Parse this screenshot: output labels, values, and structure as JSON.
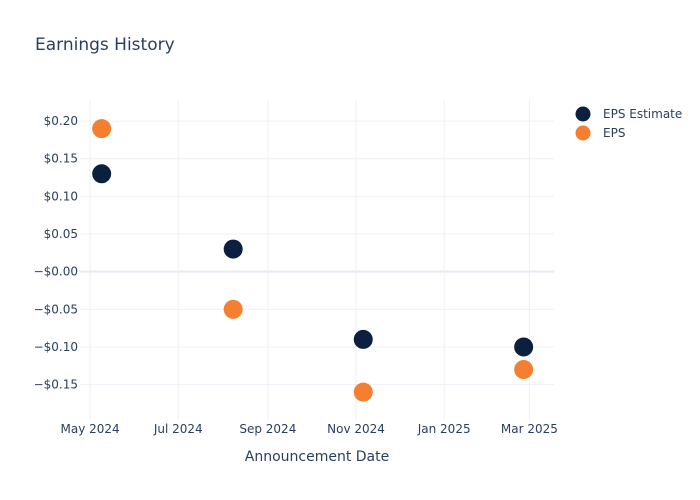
{
  "chart_data": {
    "type": "scatter",
    "title": "Earnings History",
    "xlabel": "Announcement Date",
    "ylabel": "",
    "x_ticks": [
      {
        "date": "2024-05-01",
        "label": "May 2024"
      },
      {
        "date": "2024-07-01",
        "label": "Jul 2024"
      },
      {
        "date": "2024-09-01",
        "label": "Sep 2024"
      },
      {
        "date": "2024-11-01",
        "label": "Nov 2024"
      },
      {
        "date": "2025-01-01",
        "label": "Jan 2025"
      },
      {
        "date": "2025-03-01",
        "label": "Mar 2025"
      }
    ],
    "y_ticks": [
      {
        "value": 0.2,
        "label": "$0.20"
      },
      {
        "value": 0.15,
        "label": "$0.15"
      },
      {
        "value": 0.1,
        "label": "$0.10"
      },
      {
        "value": 0.05,
        "label": "$0.05"
      },
      {
        "value": 0.0,
        "label": "−$0.00"
      },
      {
        "value": -0.05,
        "label": "−$0.05"
      },
      {
        "value": -0.1,
        "label": "−$0.10"
      },
      {
        "value": -0.15,
        "label": "−$0.15"
      }
    ],
    "xlim": [
      "2024-04-24",
      "2025-03-18"
    ],
    "ylim": [
      -0.197,
      0.228
    ],
    "grid": true,
    "legend_position": "top-right",
    "series": [
      {
        "name": "EPS Estimate",
        "color": "#0b1f3f",
        "points": [
          {
            "x": "2024-05-09",
            "y": 0.13
          },
          {
            "x": "2024-08-08",
            "y": 0.03
          },
          {
            "x": "2024-11-06",
            "y": -0.09
          },
          {
            "x": "2025-02-25",
            "y": -0.1
          }
        ]
      },
      {
        "name": "EPS",
        "color": "#f47f31",
        "points": [
          {
            "x": "2024-05-09",
            "y": 0.19
          },
          {
            "x": "2024-08-08",
            "y": -0.05
          },
          {
            "x": "2024-11-06",
            "y": -0.16
          },
          {
            "x": "2025-02-25",
            "y": -0.13
          }
        ]
      }
    ]
  }
}
